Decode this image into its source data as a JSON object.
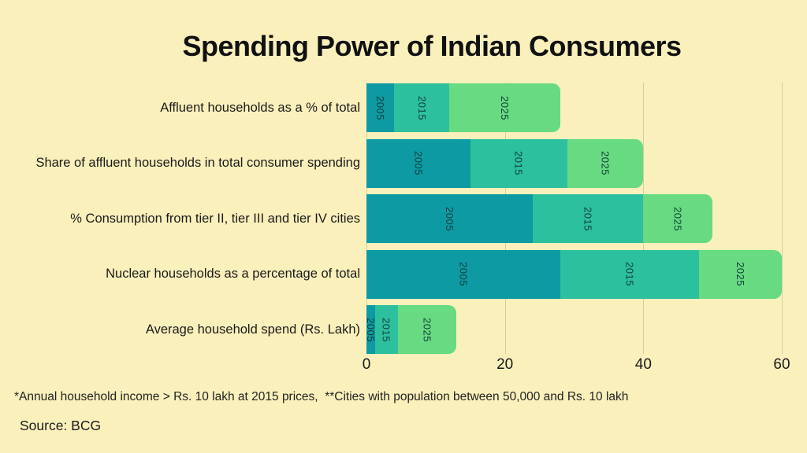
{
  "title": "Spending Power of Indian Consumers",
  "chart_data": {
    "type": "bar",
    "orientation": "horizontal",
    "stacked": true,
    "value_meaning": "each year segment edge marks that year's value measured from 0",
    "categories": [
      "Affluent households as a % of total",
      "Share of affluent households in total consumer spending",
      "% Consumption from tier II, tier III and tier IV cities",
      "Nuclear households as a percentage of total",
      "Average household spend (Rs. Lakh)"
    ],
    "series": [
      {
        "name": "2005",
        "color": "#0d9aa2",
        "values": [
          4,
          15,
          24,
          28,
          1.2
        ]
      },
      {
        "name": "2015",
        "color": "#2dc09e",
        "values": [
          12,
          29,
          40,
          48,
          4.5
        ]
      },
      {
        "name": "2025",
        "color": "#68da81",
        "values": [
          28,
          40,
          50,
          60,
          13
        ]
      }
    ],
    "x_ticks": [
      0,
      20,
      40,
      60
    ],
    "xlim": [
      0,
      60
    ],
    "grid": true,
    "legend": "year labels printed vertically inside each segment"
  },
  "footnote": "*Annual household income > Rs. 10 lakh at 2015 prices,  **Cities with population between 50,000 and Rs. 10 lakh",
  "source_label": "Source: BCG",
  "colors": {
    "background": "#FAF0BC",
    "bar_2005": "#0d9aa2",
    "bar_2015": "#2dc09e",
    "bar_2025": "#68da81",
    "text": "#1a1a1a"
  }
}
